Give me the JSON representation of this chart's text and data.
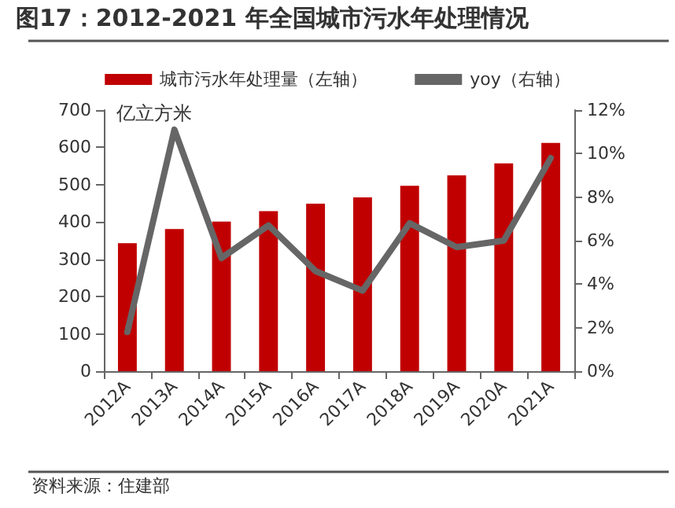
{
  "chart_data": {
    "type": "bar",
    "title": "图17：2012-2021 年全国城市污水年处理情况",
    "categories": [
      "2012A",
      "2013A",
      "2014A",
      "2015A",
      "2016A",
      "2017A",
      "2018A",
      "2019A",
      "2020A",
      "2021A"
    ],
    "series": [
      {
        "name": "城市污水年处理量（左轴）",
        "color": "#c00000",
        "values": [
          343,
          381,
          401,
          429,
          449,
          466,
          497,
          525,
          557,
          612
        ]
      },
      {
        "name": "yoy（右轴）",
        "type": "line",
        "axis": "y2",
        "color": "#666666",
        "values": [
          1.8,
          11.1,
          5.2,
          6.7,
          4.6,
          3.7,
          6.8,
          5.7,
          6.0,
          9.8
        ]
      }
    ],
    "ylim": [
      0,
      700
    ],
    "yticks": [
      0,
      100,
      200,
      300,
      400,
      500,
      600,
      700
    ],
    "y2lim": [
      0,
      12
    ],
    "y2ticks": [
      {
        "value": 0,
        "label": "0%"
      },
      {
        "value": 2,
        "label": "2%"
      },
      {
        "value": 4,
        "label": "4%"
      },
      {
        "value": 6,
        "label": "6%"
      },
      {
        "value": 8,
        "label": "8%"
      },
      {
        "value": 10,
        "label": "10%"
      },
      {
        "value": 12,
        "label": "12%"
      }
    ],
    "ylabel": "亿立方米",
    "annotations": [
      "资料来源：住建部"
    ],
    "legend": "top",
    "grid": false,
    "marker": "none",
    "line_style": "solid"
  }
}
